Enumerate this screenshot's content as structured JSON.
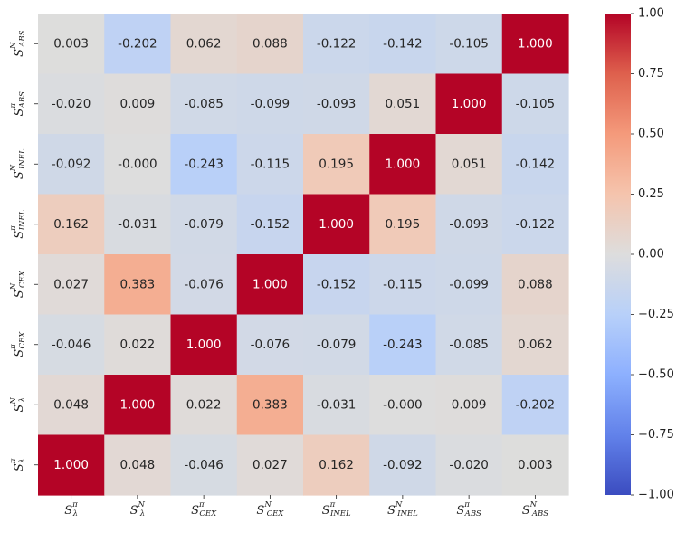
{
  "chart_data": {
    "type": "heatmap",
    "title": "",
    "xlabel": "",
    "ylabel": "",
    "colormap": "coolwarm",
    "vmin": -1.0,
    "vmax": 1.0,
    "x_categories": [
      {
        "base": "S",
        "sup": "π",
        "sub": "λ"
      },
      {
        "base": "S",
        "sup": "N",
        "sub": "λ"
      },
      {
        "base": "S",
        "sup": "π",
        "sub": "CEX"
      },
      {
        "base": "S",
        "sup": "N",
        "sub": "CEX"
      },
      {
        "base": "S",
        "sup": "π",
        "sub": "INEL"
      },
      {
        "base": "S",
        "sup": "N",
        "sub": "INEL"
      },
      {
        "base": "S",
        "sup": "π",
        "sub": "ABS"
      },
      {
        "base": "S",
        "sup": "N",
        "sub": "ABS"
      }
    ],
    "y_categories_top_to_bottom": [
      {
        "base": "S",
        "sup": "N",
        "sub": "ABS"
      },
      {
        "base": "S",
        "sup": "π",
        "sub": "ABS"
      },
      {
        "base": "S",
        "sup": "N",
        "sub": "INEL"
      },
      {
        "base": "S",
        "sup": "π",
        "sub": "INEL"
      },
      {
        "base": "S",
        "sup": "N",
        "sub": "CEX"
      },
      {
        "base": "S",
        "sup": "π",
        "sub": "CEX"
      },
      {
        "base": "S",
        "sup": "N",
        "sub": "λ"
      },
      {
        "base": "S",
        "sup": "π",
        "sub": "λ"
      }
    ],
    "values_top_to_bottom": [
      [
        0.003,
        -0.202,
        0.062,
        0.088,
        -0.122,
        -0.142,
        -0.105,
        1.0
      ],
      [
        -0.02,
        0.009,
        -0.085,
        -0.099,
        -0.093,
        0.051,
        1.0,
        -0.105
      ],
      [
        -0.092,
        -0.0,
        -0.243,
        -0.115,
        0.195,
        1.0,
        0.051,
        -0.142
      ],
      [
        0.162,
        -0.031,
        -0.079,
        -0.152,
        1.0,
        0.195,
        -0.093,
        -0.122
      ],
      [
        0.027,
        0.383,
        -0.076,
        1.0,
        -0.152,
        -0.115,
        -0.099,
        0.088
      ],
      [
        -0.046,
        0.022,
        1.0,
        -0.076,
        -0.079,
        -0.243,
        -0.085,
        0.062
      ],
      [
        0.048,
        1.0,
        0.022,
        0.383,
        -0.031,
        -0.0,
        0.009,
        -0.202
      ],
      [
        1.0,
        0.048,
        -0.046,
        0.027,
        0.162,
        -0.092,
        -0.02,
        0.003
      ]
    ],
    "value_format": "%.3f",
    "colorbar": {
      "ticks": [
        1.0,
        0.75,
        0.5,
        0.25,
        0.0,
        -0.25,
        -0.5,
        -0.75,
        -1.0
      ],
      "tick_labels": [
        "1.00",
        "0.75",
        "0.50",
        "0.25",
        "0.00",
        "−0.25",
        "−0.50",
        "−0.75",
        "−1.00"
      ]
    },
    "grid": false,
    "legend": "colorbar-right"
  }
}
